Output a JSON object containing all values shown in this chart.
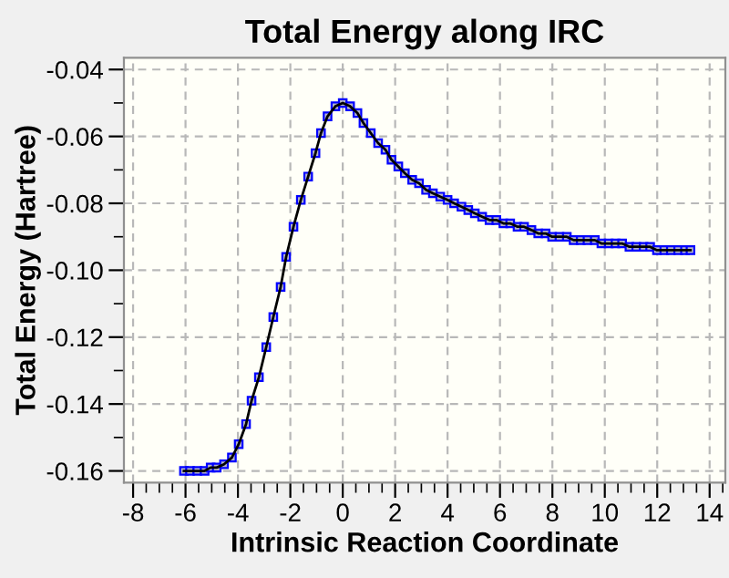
{
  "chart_data": {
    "type": "line",
    "title": "Total Energy along IRC",
    "xlabel": "Intrinsic Reaction Coordinate",
    "ylabel": "Total Energy (Hartree)",
    "xlim": [
      -8.35,
      14.6
    ],
    "ylim": [
      -0.1635,
      -0.0365
    ],
    "xticks": [
      -8,
      -6,
      -4,
      -2,
      0,
      2,
      4,
      6,
      8,
      10,
      12,
      14
    ],
    "yticks": [
      {
        "value": -0.04,
        "label": "-0.04"
      },
      {
        "value": -0.06,
        "label": "-0.06"
      },
      {
        "value": -0.08,
        "label": "-0.08"
      },
      {
        "value": -0.1,
        "label": "-0.10"
      },
      {
        "value": -0.12,
        "label": "-0.12"
      },
      {
        "value": -0.14,
        "label": "-0.14"
      },
      {
        "value": -0.16,
        "label": "-0.16"
      }
    ],
    "grid": true,
    "marker": "square",
    "line_style": "solid",
    "series": [
      {
        "color": "#000000",
        "x": [
          -6.06,
          -5.83,
          -5.55,
          -5.27,
          -5.04,
          -4.81,
          -4.53,
          -4.23,
          -3.97,
          -3.69,
          -3.48,
          -3.2,
          -2.92,
          -2.65,
          -2.37,
          -2.16,
          -1.88,
          -1.6,
          -1.32,
          -1.04,
          -0.83,
          -0.58,
          -0.28,
          0.0,
          0.28,
          0.56,
          0.79,
          1.07,
          1.35,
          1.63,
          1.86,
          2.12,
          2.37,
          2.65,
          2.91,
          3.18,
          3.44,
          3.72,
          4.0,
          4.25,
          4.53,
          4.79,
          5.04,
          5.32,
          5.6,
          5.86,
          6.13,
          6.39,
          6.67,
          6.92,
          7.2,
          7.46,
          7.74,
          7.99,
          8.27,
          8.55,
          8.81,
          9.08,
          9.34,
          9.62,
          9.87,
          10.15,
          10.41,
          10.66,
          10.94,
          11.2,
          11.48,
          11.73,
          11.99,
          12.27,
          12.52,
          12.8,
          13.06,
          13.27
        ],
        "values": [
          -0.16,
          -0.16,
          -0.16,
          -0.16,
          -0.159,
          -0.159,
          -0.158,
          -0.156,
          -0.152,
          -0.146,
          -0.139,
          -0.132,
          -0.123,
          -0.114,
          -0.105,
          -0.096,
          -0.087,
          -0.079,
          -0.072,
          -0.065,
          -0.059,
          -0.054,
          -0.051,
          -0.05,
          -0.051,
          -0.053,
          -0.056,
          -0.059,
          -0.062,
          -0.064,
          -0.067,
          -0.069,
          -0.071,
          -0.073,
          -0.074,
          -0.076,
          -0.077,
          -0.078,
          -0.079,
          -0.08,
          -0.081,
          -0.082,
          -0.083,
          -0.084,
          -0.085,
          -0.085,
          -0.086,
          -0.086,
          -0.087,
          -0.087,
          -0.088,
          -0.089,
          -0.089,
          -0.09,
          -0.09,
          -0.09,
          -0.091,
          -0.091,
          -0.091,
          -0.091,
          -0.092,
          -0.092,
          -0.092,
          -0.092,
          -0.093,
          -0.093,
          -0.093,
          -0.093,
          -0.094,
          -0.094,
          -0.094,
          -0.094,
          -0.094,
          -0.094
        ]
      }
    ]
  }
}
